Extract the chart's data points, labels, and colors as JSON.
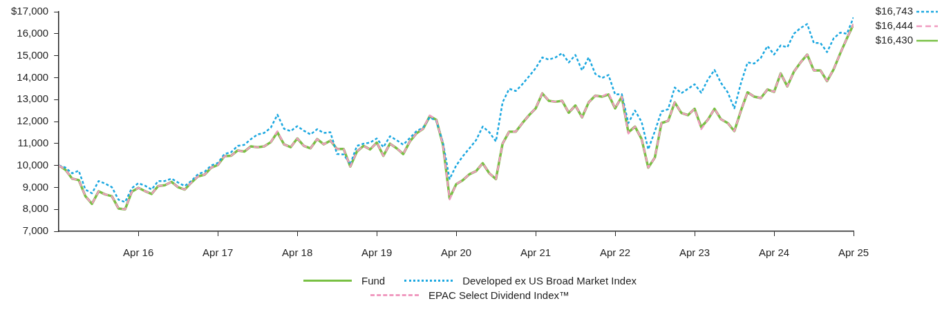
{
  "chart_data": {
    "type": "line",
    "x": [
      "2015-04",
      "2015-05",
      "2015-06",
      "2015-07",
      "2015-08",
      "2015-09",
      "2015-10",
      "2015-11",
      "2015-12",
      "2016-01",
      "2016-02",
      "2016-03",
      "2016-04",
      "2016-05",
      "2016-06",
      "2016-07",
      "2016-08",
      "2016-09",
      "2016-10",
      "2016-11",
      "2016-12",
      "2017-01",
      "2017-02",
      "2017-03",
      "2017-04",
      "2017-05",
      "2017-06",
      "2017-07",
      "2017-08",
      "2017-09",
      "2017-10",
      "2017-11",
      "2017-12",
      "2018-01",
      "2018-02",
      "2018-03",
      "2018-04",
      "2018-05",
      "2018-06",
      "2018-07",
      "2018-08",
      "2018-09",
      "2018-10",
      "2018-11",
      "2018-12",
      "2019-01",
      "2019-02",
      "2019-03",
      "2019-04",
      "2019-05",
      "2019-06",
      "2019-07",
      "2019-08",
      "2019-09",
      "2019-10",
      "2019-11",
      "2019-12",
      "2020-01",
      "2020-02",
      "2020-03",
      "2020-04",
      "2020-05",
      "2020-06",
      "2020-07",
      "2020-08",
      "2020-09",
      "2020-10",
      "2020-11",
      "2020-12",
      "2021-01",
      "2021-02",
      "2021-03",
      "2021-04",
      "2021-05",
      "2021-06",
      "2021-07",
      "2021-08",
      "2021-09",
      "2021-10",
      "2021-11",
      "2021-12",
      "2022-01",
      "2022-02",
      "2022-03",
      "2022-04",
      "2022-05",
      "2022-06",
      "2022-07",
      "2022-08",
      "2022-09",
      "2022-10",
      "2022-11",
      "2022-12",
      "2023-01",
      "2023-02",
      "2023-03",
      "2023-04",
      "2023-05",
      "2023-06",
      "2023-07",
      "2023-08",
      "2023-09",
      "2023-10",
      "2023-11",
      "2023-12",
      "2024-01",
      "2024-02",
      "2024-03",
      "2024-04",
      "2024-05",
      "2024-06",
      "2024-07",
      "2024-08",
      "2024-09",
      "2024-10",
      "2024-11",
      "2024-12",
      "2025-01",
      "2025-02",
      "2025-03",
      "2025-04"
    ],
    "series": [
      {
        "name": "Fund",
        "color": "#78c043",
        "line_style": "solid",
        "values": [
          10000,
          9800,
          9400,
          9330,
          8600,
          8250,
          8820,
          8680,
          8600,
          8040,
          8000,
          8800,
          8980,
          8830,
          8700,
          9060,
          9100,
          9250,
          9010,
          8900,
          9220,
          9500,
          9580,
          9900,
          10020,
          10420,
          10440,
          10680,
          10630,
          10870,
          10830,
          10870,
          11060,
          11510,
          10960,
          10830,
          11230,
          10890,
          10780,
          11200,
          10960,
          11130,
          10750,
          10750,
          9950,
          10630,
          10890,
          10730,
          11040,
          10440,
          10990,
          10780,
          10520,
          11090,
          11460,
          11670,
          12240,
          12080,
          10940,
          8510,
          9150,
          9330,
          9600,
          9740,
          10100,
          9640,
          9380,
          10990,
          11540,
          11540,
          11930,
          12290,
          12600,
          13280,
          12940,
          12900,
          12940,
          12400,
          12730,
          12190,
          12870,
          13180,
          13130,
          13230,
          12600,
          13130,
          11510,
          11770,
          11200,
          9900,
          10360,
          11930,
          12030,
          12870,
          12390,
          12290,
          12580,
          11740,
          12080,
          12580,
          12100,
          11930,
          11560,
          12500,
          13330,
          13130,
          13070,
          13460,
          13350,
          14190,
          13600,
          14270,
          14690,
          15050,
          14330,
          14330,
          13840,
          14380,
          15110,
          15790,
          16430
        ]
      },
      {
        "name": "Developed ex US Broad Market Index",
        "color": "#1aa7e0",
        "line_style": "dotted",
        "values": [
          10000,
          9900,
          9640,
          9760,
          8900,
          8730,
          9290,
          9170,
          9010,
          8440,
          8330,
          8960,
          9190,
          9080,
          8900,
          9290,
          9290,
          9400,
          9220,
          9060,
          9290,
          9600,
          9710,
          10000,
          10110,
          10520,
          10600,
          10890,
          10940,
          11200,
          11410,
          11480,
          11720,
          12310,
          11670,
          11560,
          11790,
          11580,
          11410,
          11650,
          11480,
          11510,
          10520,
          10500,
          10050,
          10890,
          10990,
          11040,
          11230,
          10830,
          11330,
          11150,
          10940,
          11250,
          11560,
          11720,
          12190,
          12030,
          11040,
          9380,
          10000,
          10420,
          10780,
          11150,
          11770,
          11510,
          11090,
          12870,
          13490,
          13390,
          13700,
          14060,
          14430,
          14920,
          14820,
          14920,
          15110,
          14690,
          15030,
          14330,
          14920,
          14170,
          13980,
          14120,
          13230,
          13250,
          11930,
          12500,
          11980,
          10730,
          11560,
          12460,
          12560,
          13550,
          13290,
          13490,
          13700,
          13310,
          13910,
          14350,
          13750,
          13330,
          12600,
          13750,
          14690,
          14640,
          14900,
          15440,
          15050,
          15470,
          15380,
          16000,
          16260,
          16440,
          15580,
          15580,
          15160,
          15790,
          16050,
          16000,
          16743
        ]
      },
      {
        "name": "EPAC Select Dividend Index™",
        "color": "#f09ac0",
        "line_style": "dashed",
        "values": [
          10000,
          9800,
          9400,
          9330,
          8600,
          8250,
          8820,
          8680,
          8600,
          8040,
          8000,
          8800,
          8980,
          8830,
          8700,
          9060,
          9100,
          9250,
          9010,
          8900,
          9220,
          9500,
          9580,
          9900,
          10020,
          10420,
          10440,
          10680,
          10630,
          10870,
          10830,
          10870,
          11060,
          11560,
          10960,
          10830,
          11230,
          10890,
          10780,
          11200,
          10960,
          11130,
          10750,
          10750,
          9950,
          10630,
          10890,
          10730,
          11040,
          10440,
          10990,
          10780,
          10520,
          11090,
          11460,
          11670,
          12280,
          12080,
          10940,
          8450,
          9150,
          9330,
          9600,
          9740,
          10100,
          9640,
          9380,
          10990,
          11540,
          11540,
          11930,
          12290,
          12600,
          13300,
          12940,
          12900,
          12940,
          12400,
          12730,
          12190,
          12870,
          13180,
          13130,
          13300,
          12600,
          13130,
          11450,
          11770,
          11200,
          9900,
          10360,
          11930,
          12030,
          12870,
          12390,
          12290,
          12580,
          11650,
          12080,
          12580,
          12100,
          11930,
          11560,
          12500,
          13330,
          13130,
          13070,
          13460,
          13350,
          14190,
          13600,
          14270,
          14690,
          15050,
          14330,
          14330,
          13840,
          14380,
          15110,
          15790,
          16444
        ]
      }
    ],
    "xlim": [
      "2015-04",
      "2025-04"
    ],
    "xticks": [
      {
        "value": "2016-04",
        "label": "Apr 16"
      },
      {
        "value": "2017-04",
        "label": "Apr 17"
      },
      {
        "value": "2018-04",
        "label": "Apr 18"
      },
      {
        "value": "2019-04",
        "label": "Apr 19"
      },
      {
        "value": "2020-04",
        "label": "Apr 20"
      },
      {
        "value": "2021-04",
        "label": "Apr 21"
      },
      {
        "value": "2022-04",
        "label": "Apr 22"
      },
      {
        "value": "2023-04",
        "label": "Apr 23"
      },
      {
        "value": "2024-04",
        "label": "Apr 24"
      },
      {
        "value": "2025-04",
        "label": "Apr 25"
      }
    ],
    "ylim": [
      7000,
      17000
    ],
    "yticks": [
      {
        "value": 7000,
        "label": "7,000"
      },
      {
        "value": 8000,
        "label": "8,000"
      },
      {
        "value": 9000,
        "label": "9,000"
      },
      {
        "value": 10000,
        "label": "10,000"
      },
      {
        "value": 11000,
        "label": "11,000"
      },
      {
        "value": 12000,
        "label": "12,000"
      },
      {
        "value": 13000,
        "label": "13,000"
      },
      {
        "value": 14000,
        "label": "14,000"
      },
      {
        "value": 15000,
        "label": "15,000"
      },
      {
        "value": 16000,
        "label": "16,000"
      },
      {
        "value": 17000,
        "label": "$17,000"
      }
    ],
    "annotations": [
      {
        "text": "$16,743",
        "x": "2025-04",
        "y": 16743
      },
      {
        "text": "$16,444",
        "x": "2025-04",
        "y": 16444
      },
      {
        "text": "$16,430",
        "x": "2025-04",
        "y": 16430
      }
    ],
    "grid": false,
    "legend": "bottom",
    "marker": "none"
  }
}
